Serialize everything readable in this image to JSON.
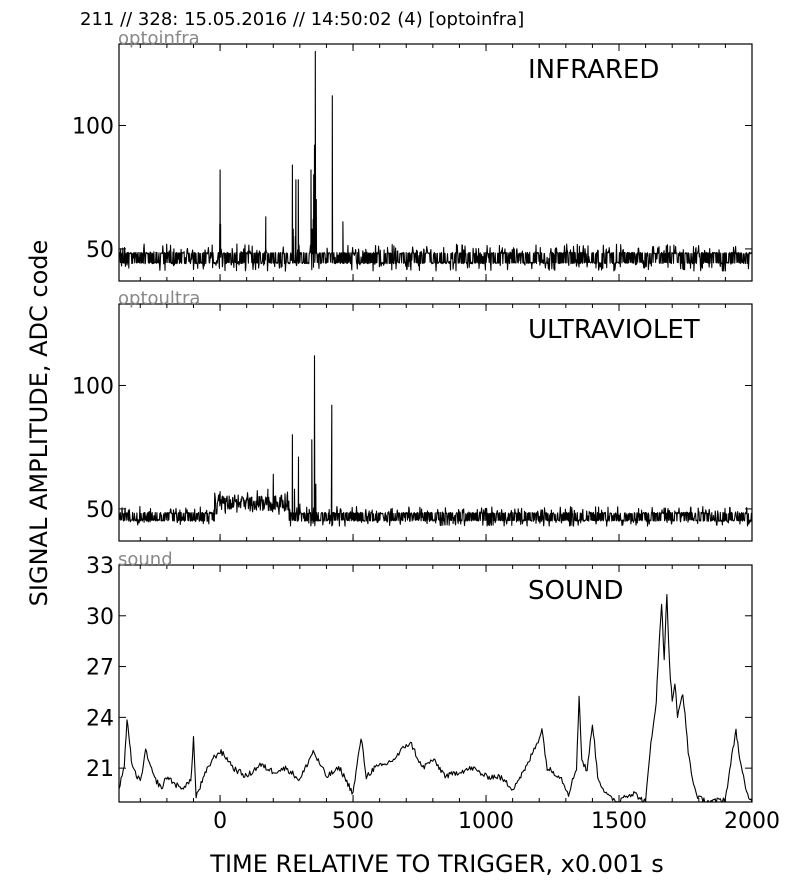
{
  "header": "211 // 328:   15.05.2016 // 14:50:02 (4)  [optoinfra]",
  "xlabel": "TIME RELATIVE TO TRIGGER,   x0.001 s",
  "ylabel": "SIGNAL AMPLITUDE,  ADC code",
  "chart_data": [
    {
      "type": "line",
      "title": "INFRARED",
      "channel": "optoinfra",
      "xlim": [
        -380,
        2000
      ],
      "ylim": [
        37,
        133
      ],
      "xticks": [
        0,
        500,
        1000,
        1500,
        2000
      ],
      "yticks": [
        50,
        100
      ],
      "baseline": [
        44,
        48
      ],
      "noise": {
        "low": 41,
        "high": 52
      },
      "series": [
        {
          "x": [
            -380,
            -5,
            -1,
            0,
            2,
            5,
            170,
            172,
            178,
            270,
            272,
            275,
            278,
            283,
            285,
            291,
            294,
            298,
            340,
            342,
            346,
            350,
            352,
            355,
            358,
            362,
            365,
            420,
            422,
            425,
            460,
            462,
            466,
            2000
          ],
          "y": [
            46,
            46,
            60,
            82,
            60,
            46,
            46,
            63,
            48,
            48,
            84,
            58,
            48,
            55,
            78,
            52,
            78,
            48,
            48,
            82,
            58,
            62,
            80,
            92,
            130,
            70,
            48,
            48,
            112,
            48,
            48,
            61,
            48,
            46
          ]
        }
      ]
    },
    {
      "type": "line",
      "title": "ULTRAVIOLET",
      "channel": "optoultra",
      "xlim": [
        -380,
        2000
      ],
      "ylim": [
        37,
        133
      ],
      "xticks": [
        0,
        500,
        1000,
        1500,
        2000
      ],
      "yticks": [
        50,
        100
      ],
      "baseline": [
        45,
        48
      ],
      "noise": {
        "low": 43,
        "high": 51
      },
      "series": [
        {
          "x": [
            -380,
            -100,
            -50,
            0,
            100,
            150,
            180,
            200,
            210,
            250,
            272,
            280,
            295,
            300,
            340,
            345,
            355,
            360,
            400,
            420,
            425,
            480,
            500,
            2000
          ],
          "y": [
            47,
            47,
            48,
            57,
            54,
            55,
            58,
            64,
            54,
            50,
            80,
            58,
            71,
            52,
            50,
            78,
            112,
            60,
            48,
            92,
            48,
            47,
            47,
            47
          ]
        }
      ]
    },
    {
      "type": "line",
      "title": "SOUND",
      "channel": "sound",
      "xlim": [
        -380,
        2000
      ],
      "ylim": [
        19,
        33
      ],
      "xticks": [
        0,
        500,
        1000,
        1500,
        2000
      ],
      "yticks": [
        21,
        24,
        27,
        30,
        33
      ],
      "series": [
        {
          "x": [
            -380,
            -360,
            -350,
            -340,
            -330,
            -300,
            -280,
            -250,
            -220,
            -200,
            -150,
            -110,
            -100,
            -90,
            -60,
            -30,
            0,
            30,
            50,
            100,
            150,
            200,
            250,
            300,
            350,
            400,
            450,
            500,
            530,
            550,
            580,
            620,
            660,
            700,
            720,
            760,
            800,
            850,
            900,
            950,
            1000,
            1050,
            1100,
            1150,
            1200,
            1210,
            1230,
            1280,
            1310,
            1340,
            1350,
            1360,
            1380,
            1400,
            1420,
            1440,
            1460,
            1500,
            1520,
            1560,
            1580,
            1600,
            1620,
            1640,
            1650,
            1660,
            1670,
            1680,
            1690,
            1700,
            1710,
            1720,
            1740,
            1760,
            1780,
            1800,
            1850,
            1900,
            1940,
            1950,
            1960,
            1980,
            2000
          ],
          "y": [
            19.8,
            21,
            24,
            22.5,
            21,
            20.2,
            22,
            20.5,
            19.8,
            20.5,
            19.8,
            20.2,
            22.8,
            19.3,
            20.5,
            21.5,
            22,
            21.5,
            21,
            20.5,
            21.2,
            20.8,
            21,
            20.3,
            22,
            20.5,
            21,
            19.5,
            22.8,
            20.5,
            21,
            21.2,
            21.6,
            22.4,
            22.4,
            21,
            21.5,
            20.5,
            20.8,
            21,
            20.5,
            20.5,
            19.8,
            21,
            22.8,
            23.3,
            21,
            20.5,
            19.5,
            21,
            25.2,
            21.5,
            20.8,
            23.7,
            20.5,
            19.8,
            19.3,
            19.0,
            19.4,
            19.5,
            19.2,
            19.0,
            22.5,
            25,
            28,
            30.8,
            27.5,
            31.3,
            27,
            25,
            26,
            24,
            25.5,
            22,
            20,
            19.2,
            19.0,
            19.2,
            23.3,
            22,
            21,
            19.5,
            19.0
          ]
        }
      ]
    }
  ]
}
